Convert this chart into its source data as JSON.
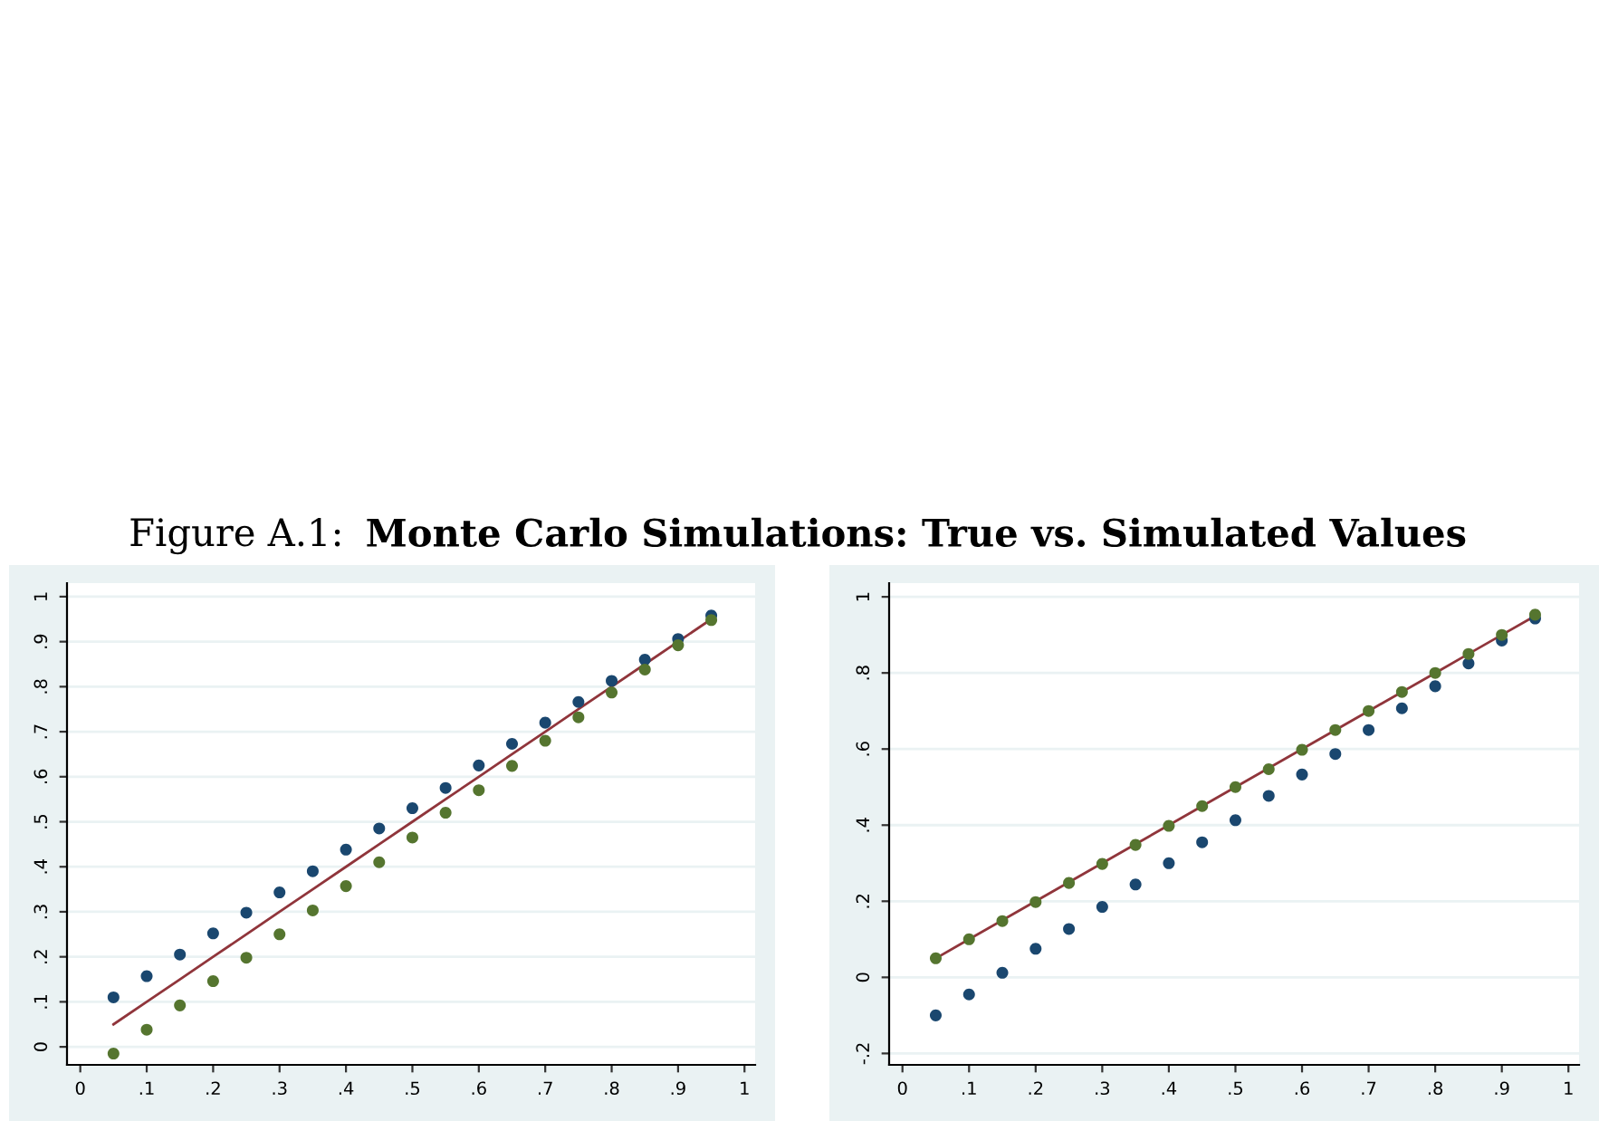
{
  "chart_data": [
    {
      "type": "scatter",
      "title": "Figure A.1: Monte Carlo Simulations: True vs. Simulated Values",
      "x": [
        0.05,
        0.1,
        0.15,
        0.2,
        0.25,
        0.3,
        0.35,
        0.4,
        0.45,
        0.5,
        0.55,
        0.6,
        0.65,
        0.7,
        0.75,
        0.8,
        0.85,
        0.9,
        0.95
      ],
      "series": [
        {
          "type": "line",
          "marker": "none",
          "color": "#90353b",
          "values": [
            0.05,
            0.1,
            0.15,
            0.2,
            0.25,
            0.3,
            0.35,
            0.4,
            0.45,
            0.5,
            0.55,
            0.6,
            0.65,
            0.7,
            0.75,
            0.8,
            0.85,
            0.9,
            0.95
          ]
        },
        {
          "color": "#1a476f",
          "values": [
            0.11,
            0.157,
            0.205,
            0.252,
            0.298,
            0.343,
            0.39,
            0.438,
            0.485,
            0.53,
            0.575,
            0.625,
            0.673,
            0.72,
            0.766,
            0.813,
            0.86,
            0.906,
            0.958
          ]
        },
        {
          "color": "#55752f",
          "values": [
            -0.015,
            0.038,
            0.092,
            0.146,
            0.198,
            0.25,
            0.303,
            0.357,
            0.41,
            0.465,
            0.52,
            0.57,
            0.624,
            0.68,
            0.732,
            0.787,
            0.838,
            0.892,
            0.948
          ]
        }
      ],
      "marker": "circle",
      "grid": "y",
      "legend": false,
      "xlim": [
        -0.02,
        1.016
      ],
      "ylim": [
        -0.04,
        1.03
      ],
      "xticks": [
        0,
        {
          "value": 0.1,
          "label": ".1"
        },
        {
          "value": 0.2,
          "label": ".2"
        },
        {
          "value": 0.3,
          "label": ".3"
        },
        {
          "value": 0.4,
          "label": ".4"
        },
        {
          "value": 0.5,
          "label": ".5"
        },
        {
          "value": 0.6,
          "label": ".6"
        },
        {
          "value": 0.7,
          "label": ".7"
        },
        {
          "value": 0.8,
          "label": ".8"
        },
        {
          "value": 0.9,
          "label": ".9"
        },
        1
      ],
      "yticks": [
        0,
        {
          "value": 0.1,
          "label": ".1"
        },
        {
          "value": 0.2,
          "label": ".2"
        },
        {
          "value": 0.3,
          "label": ".3"
        },
        {
          "value": 0.4,
          "label": ".4"
        },
        {
          "value": 0.5,
          "label": ".5"
        },
        {
          "value": 0.6,
          "label": ".6"
        },
        {
          "value": 0.7,
          "label": ".7"
        },
        {
          "value": 0.8,
          "label": ".8"
        },
        {
          "value": 0.9,
          "label": ".9"
        },
        1
      ]
    },
    {
      "type": "scatter",
      "x": [
        0.05,
        0.1,
        0.15,
        0.2,
        0.25,
        0.3,
        0.35,
        0.4,
        0.45,
        0.5,
        0.55,
        0.6,
        0.65,
        0.7,
        0.75,
        0.8,
        0.85,
        0.9,
        0.95
      ],
      "series": [
        {
          "type": "line",
          "marker": "none",
          "color": "#90353b",
          "values": [
            0.05,
            0.1,
            0.15,
            0.2,
            0.25,
            0.3,
            0.35,
            0.4,
            0.45,
            0.5,
            0.55,
            0.6,
            0.65,
            0.7,
            0.75,
            0.8,
            0.85,
            0.9,
            0.95
          ]
        },
        {
          "color": "#1a476f",
          "values": [
            -0.1,
            -0.045,
            0.012,
            0.075,
            0.127,
            0.185,
            0.244,
            0.3,
            0.355,
            0.413,
            0.477,
            0.533,
            0.587,
            0.65,
            0.707,
            0.765,
            0.825,
            0.885,
            0.943
          ]
        },
        {
          "color": "#55752f",
          "values": [
            0.05,
            0.1,
            0.148,
            0.198,
            0.248,
            0.298,
            0.348,
            0.398,
            0.45,
            0.5,
            0.547,
            0.598,
            0.65,
            0.7,
            0.75,
            0.8,
            0.85,
            0.9,
            0.953
          ]
        }
      ],
      "marker": "circle",
      "grid": "y",
      "legend": false,
      "xlim": [
        -0.02,
        1.016
      ],
      "ylim": [
        -0.23,
        1.036
      ],
      "xticks": [
        0,
        {
          "value": 0.1,
          "label": ".1"
        },
        {
          "value": 0.2,
          "label": ".2"
        },
        {
          "value": 0.3,
          "label": ".3"
        },
        {
          "value": 0.4,
          "label": ".4"
        },
        {
          "value": 0.5,
          "label": ".5"
        },
        {
          "value": 0.6,
          "label": ".6"
        },
        {
          "value": 0.7,
          "label": ".7"
        },
        {
          "value": 0.8,
          "label": ".8"
        },
        {
          "value": 0.9,
          "label": ".9"
        },
        1
      ],
      "yticks": [
        {
          "value": -0.2,
          "label": "-.2"
        },
        0,
        {
          "value": 0.2,
          "label": ".2"
        },
        {
          "value": 0.4,
          "label": ".4"
        },
        {
          "value": 0.6,
          "label": ".6"
        },
        {
          "value": 0.8,
          "label": ".8"
        },
        1
      ]
    }
  ]
}
